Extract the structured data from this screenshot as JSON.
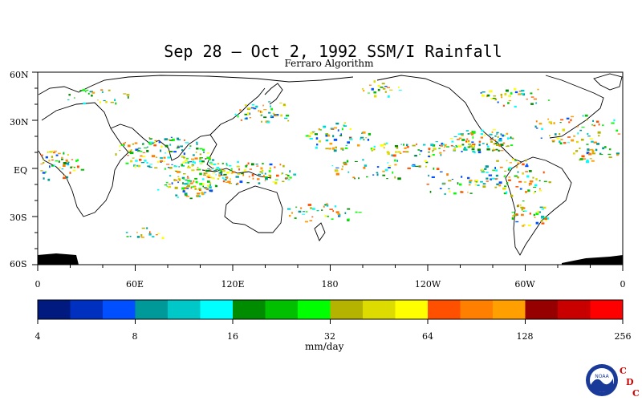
{
  "title": "Sep 28 – Oct 2, 1992 SSM/I Rainfall",
  "subtitle": "Ferraro Algorithm",
  "lat_labels": [
    "60N",
    "30N",
    "EQ",
    "30S",
    "60S"
  ],
  "lon_labels": [
    "0",
    "60E",
    "120E",
    "180",
    "120W",
    "60W",
    "0"
  ],
  "colorbar": {
    "colors": [
      "#001a80",
      "#0030c0",
      "#0050ff",
      "#009999",
      "#00c8c8",
      "#00ffff",
      "#008c00",
      "#00c000",
      "#00ff00",
      "#b4b400",
      "#dcdc00",
      "#ffff00",
      "#ff5000",
      "#ff8000",
      "#ffa000",
      "#960000",
      "#c80000",
      "#ff0000"
    ],
    "tick_labels": [
      "4",
      "8",
      "16",
      "32",
      "64",
      "128",
      "256"
    ],
    "units": "mm/day"
  },
  "logo": {
    "agency_badge": "NOAA",
    "letters": [
      "C",
      "D",
      "C"
    ],
    "letter_color": "#cc0000"
  }
}
